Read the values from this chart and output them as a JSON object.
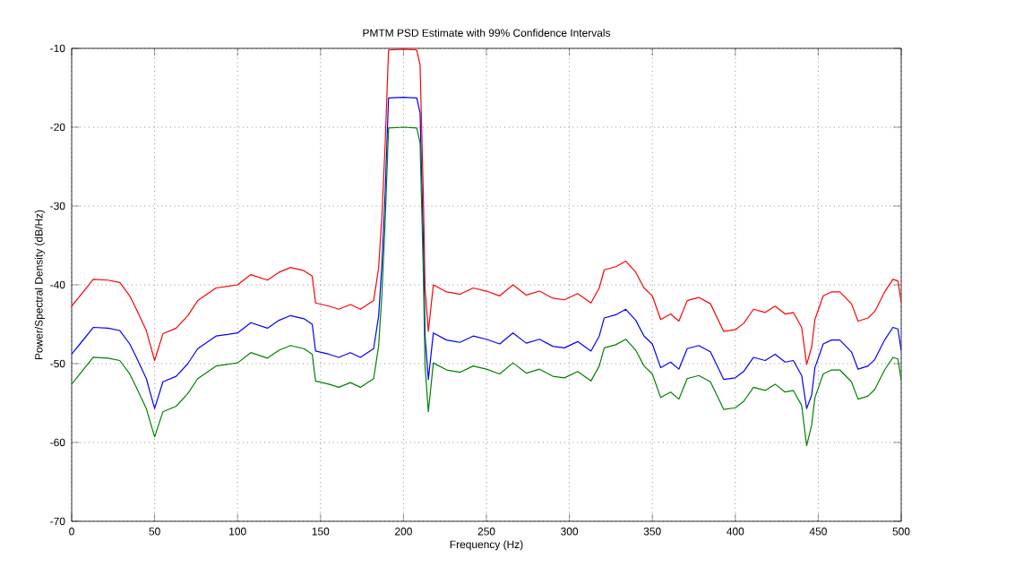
{
  "chart_data": {
    "type": "line",
    "title": "PMTM PSD Estimate with 99% Confidence Intervals",
    "xlabel": "Frequency (Hz)",
    "ylabel": "Power/Spectral Density (dB/Hz)",
    "x": [
      0,
      5,
      13,
      22,
      29,
      35,
      39,
      45,
      50,
      55,
      63,
      70,
      76,
      87,
      100,
      108,
      118,
      125,
      132,
      140,
      145,
      147,
      155,
      161,
      168,
      174,
      182,
      185,
      187,
      189,
      191,
      200,
      208,
      210,
      212,
      213,
      215,
      218,
      226,
      234,
      242,
      250,
      258,
      266,
      274,
      282,
      290,
      297,
      305,
      313,
      318,
      321,
      328,
      334,
      340,
      345,
      350,
      355,
      361,
      366,
      371,
      378,
      385,
      393,
      400,
      405,
      411,
      418,
      424,
      430,
      435,
      440,
      443,
      446,
      448,
      453,
      458,
      463,
      470,
      474,
      480,
      484,
      490,
      495,
      498,
      500
    ],
    "series": [
      {
        "color": "#ff0000",
        "values": [
          -42.7,
          -41.4,
          -39.3,
          -39.4,
          -39.7,
          -41.4,
          -43.1,
          -45.8,
          -49.6,
          -46.2,
          -45.5,
          -43.9,
          -42.0,
          -40.4,
          -40.0,
          -38.7,
          -39.4,
          -38.4,
          -37.8,
          -38.2,
          -38.9,
          -42.3,
          -42.7,
          -43.1,
          -42.5,
          -43.1,
          -42.0,
          -37.9,
          -31.3,
          -21.9,
          -10.2,
          -10.1,
          -10.2,
          -12.1,
          -28.9,
          -40.4,
          -45.9,
          -40.0,
          -40.9,
          -41.2,
          -40.4,
          -40.8,
          -41.4,
          -40.0,
          -41.3,
          -40.8,
          -41.7,
          -41.9,
          -41.1,
          -42.3,
          -40.4,
          -38.1,
          -37.7,
          -37.0,
          -38.4,
          -40.4,
          -41.4,
          -44.4,
          -43.7,
          -44.6,
          -42.0,
          -41.6,
          -42.4,
          -45.9,
          -45.7,
          -44.9,
          -43.1,
          -43.5,
          -42.7,
          -43.7,
          -43.5,
          -45.4,
          -50.1,
          -47.9,
          -44.4,
          -41.4,
          -40.9,
          -40.9,
          -42.4,
          -44.6,
          -44.2,
          -43.4,
          -40.9,
          -39.3,
          -39.5,
          -42.2
        ]
      },
      {
        "color": "#0000ff",
        "values": [
          -48.8,
          -47.5,
          -45.4,
          -45.5,
          -45.8,
          -47.5,
          -49.2,
          -51.9,
          -55.7,
          -52.3,
          -51.6,
          -50,
          -48.1,
          -46.5,
          -46.1,
          -44.8,
          -45.5,
          -44.5,
          -43.9,
          -44.3,
          -45,
          -48.4,
          -48.8,
          -49.2,
          -48.6,
          -49.2,
          -48.1,
          -44,
          -37.4,
          -28,
          -16.3,
          -16.2,
          -16.3,
          -18.2,
          -35,
          -46.5,
          -52,
          -46.1,
          -47,
          -47.3,
          -46.5,
          -46.9,
          -47.5,
          -46.1,
          -47.4,
          -46.9,
          -47.8,
          -48,
          -47.2,
          -48.4,
          -46.5,
          -44.2,
          -43.8,
          -43.1,
          -44.5,
          -46.5,
          -47.5,
          -50.5,
          -49.8,
          -50.7,
          -48.1,
          -47.7,
          -48.5,
          -52,
          -51.8,
          -51,
          -49.2,
          -49.6,
          -48.8,
          -49.8,
          -49.6,
          -51.5,
          -55.7,
          -54,
          -50.5,
          -47.5,
          -47,
          -47,
          -48.5,
          -50.7,
          -50.3,
          -49.5,
          -47,
          -45.4,
          -45.6,
          -48.3
        ]
      },
      {
        "color": "#008000",
        "values": [
          -52.6,
          -51.3,
          -49.2,
          -49.3,
          -49.6,
          -51.3,
          -53.0,
          -55.7,
          -59.3,
          -56.1,
          -55.4,
          -53.8,
          -51.9,
          -50.3,
          -49.9,
          -48.6,
          -49.3,
          -48.3,
          -47.7,
          -48.1,
          -48.8,
          -52.2,
          -52.6,
          -53.0,
          -52.4,
          -53.0,
          -51.9,
          -47.8,
          -41.2,
          -31.8,
          -20.1,
          -20.0,
          -20.1,
          -22.0,
          -38.8,
          -50.3,
          -56.1,
          -49.9,
          -50.8,
          -51.1,
          -50.3,
          -50.7,
          -51.3,
          -49.9,
          -51.2,
          -50.7,
          -51.6,
          -51.8,
          -51.0,
          -52.2,
          -50.3,
          -48.0,
          -47.6,
          -46.9,
          -48.3,
          -50.3,
          -51.3,
          -54.3,
          -53.6,
          -54.5,
          -51.9,
          -51.5,
          -52.3,
          -55.8,
          -55.6,
          -54.8,
          -53.0,
          -53.4,
          -52.6,
          -53.6,
          -53.4,
          -55.3,
          -60.4,
          -57.8,
          -54.3,
          -51.3,
          -50.8,
          -50.8,
          -52.3,
          -54.5,
          -54.1,
          -53.3,
          -50.8,
          -49.2,
          -49.4,
          -52.1
        ]
      }
    ],
    "xlim": [
      0,
      500
    ],
    "ylim": [
      -70,
      -10
    ],
    "xticks": [
      0,
      50,
      100,
      150,
      200,
      250,
      300,
      350,
      400,
      450,
      500
    ],
    "yticks": [
      -70,
      -60,
      -50,
      -40,
      -30,
      -20,
      -10
    ],
    "grid": true
  }
}
